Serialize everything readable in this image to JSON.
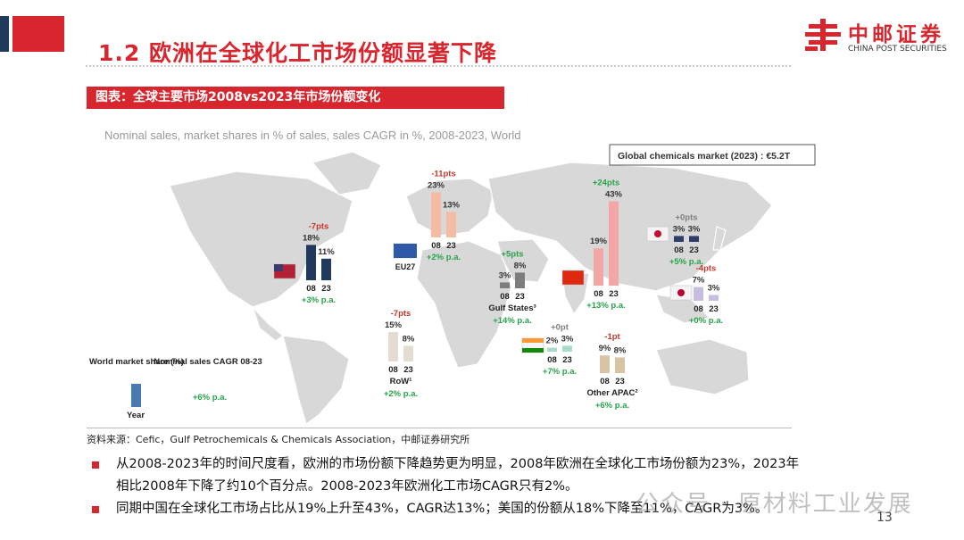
{
  "header": {
    "title": "1.2 欧洲在全球化工市场份额显著下降",
    "logo_cn": "中邮证券",
    "logo_en": "CHINA POST SECURITIES"
  },
  "figure_label": "图表：全球主要市场2008vs2023年市场份额变化",
  "chart_data": {
    "type": "bar",
    "title": "Nominal sales, market shares in % of sales, sales CAGR in %, 2008-2023, World",
    "callout": "Global chemicals market (2023) : €5.2T",
    "categories": [
      "08",
      "23"
    ],
    "legend": {
      "share_label": "World market share (%)",
      "cagr_label": "Nominal sales CAGR 08-23",
      "year_label": "Year",
      "cagr_example": "+6% p.a."
    },
    "regions": [
      {
        "key": "usa",
        "label": "",
        "values": [
          18,
          11
        ],
        "value_labels": [
          "18%",
          "11%"
        ],
        "change": "-7pts",
        "cagr": "+3% p.a.",
        "color": "#1f3a5a",
        "change_color": "#c0392b"
      },
      {
        "key": "eu27",
        "label": "EU27",
        "values": [
          23,
          13
        ],
        "value_labels": [
          "23%",
          "13%"
        ],
        "change": "-11pts",
        "cagr": "+2% p.a.",
        "color": "#f4bca1",
        "change_color": "#c0392b"
      },
      {
        "key": "gulf",
        "label": "Gulf States³",
        "values": [
          3,
          8
        ],
        "value_labels": [
          "3%",
          "8%"
        ],
        "change": "+5pts",
        "cagr": "+14% p.a.",
        "color": "#7d7d7d",
        "change_color": "#27a34a"
      },
      {
        "key": "china",
        "label": "",
        "values": [
          19,
          43
        ],
        "value_labels": [
          "19%",
          "43%"
        ],
        "change": "+24pts",
        "cagr": "+13% p.a.",
        "color": "#f4a6a6",
        "change_color": "#27a34a"
      },
      {
        "key": "korea",
        "label": "",
        "values": [
          3,
          3
        ],
        "value_labels": [
          "3%",
          "3%"
        ],
        "change": "+0pts",
        "cagr": "+5% p.a.",
        "color": "#2f3d6b",
        "change_color": "#7f7f7f"
      },
      {
        "key": "japan",
        "label": "",
        "values": [
          7,
          3
        ],
        "value_labels": [
          "7%",
          "3%"
        ],
        "change": "-4pts",
        "cagr": "+0% p.a.",
        "color": "#c6bde0",
        "change_color": "#c0392b"
      },
      {
        "key": "row",
        "label": "RoW¹",
        "values": [
          15,
          8
        ],
        "value_labels": [
          "15%",
          "8%"
        ],
        "change": "-7pts",
        "cagr": "+2% p.a.",
        "color": "#e4dcd2",
        "change_color": "#c0392b"
      },
      {
        "key": "india",
        "label": "",
        "values": [
          2,
          3
        ],
        "value_labels": [
          "2%",
          "3%"
        ],
        "change": "+0pt",
        "cagr": "+7% p.a.",
        "color": "#a8dcc8",
        "change_color": "#7f7f7f"
      },
      {
        "key": "apac",
        "label": "Other APAC²",
        "values": [
          9,
          8
        ],
        "value_labels": [
          "9%",
          "8%"
        ],
        "change": "-1pt",
        "cagr": "+6% p.a.",
        "color": "#d7c4a4",
        "change_color": "#c0392b"
      }
    ],
    "map_color": "#d8d8d8"
  },
  "source": "资料来源：Cefic，Gulf Petrochemicals & Chemicals Association，中邮证券研究所",
  "bullets": [
    "从2008-2023年的时间尺度看，欧洲的市场份额下降趋势更为明显，2008年欧洲在全球化工市场份额为23%，2023年相比2008年下降了约10个百分点。2008-2023年欧洲化工市场CAGR只有2%。",
    "同期中国在全球化工市场占比从19%上升至43%，CAGR达13%；美国的份额从18%下降至11%，CAGR为3%。"
  ],
  "watermark": "公众号 · 原材料工业发展",
  "page_number": "13"
}
